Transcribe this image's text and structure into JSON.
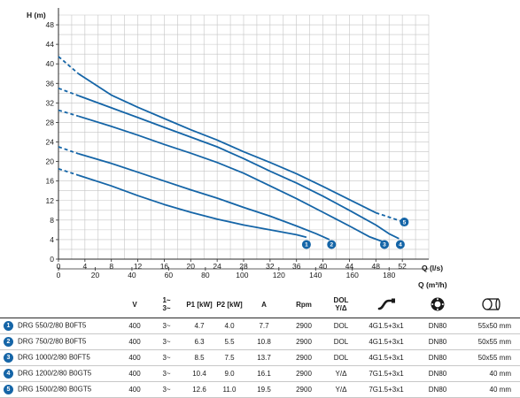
{
  "chart_data": {
    "type": "line",
    "ylabel": "H (m)",
    "xlabel": "Q (l/s)",
    "x2label": "Q (m³/h)",
    "xlim": [
      0,
      56
    ],
    "ylim": [
      0,
      50
    ],
    "x_ticks": [
      "0",
      "4",
      "8",
      "12",
      "16",
      "20",
      "24",
      "28",
      "32",
      "36",
      "40",
      "44",
      "48",
      "52"
    ],
    "x2_ticks": [
      "0",
      "20",
      "40",
      "60",
      "80",
      "100",
      "120",
      "140",
      "160",
      "180"
    ],
    "y_ticks": [
      "0",
      "4",
      "8",
      "12",
      "16",
      "20",
      "24",
      "28",
      "32",
      "36",
      "40",
      "44",
      "48"
    ],
    "grid": true,
    "series": [
      {
        "name": "1",
        "shutoff": [
          [
            0,
            18.5
          ],
          [
            3,
            17.2
          ]
        ],
        "points": [
          [
            3,
            17.2
          ],
          [
            8,
            15.0
          ],
          [
            12,
            13.0
          ],
          [
            16,
            11.2
          ],
          [
            20,
            9.6
          ],
          [
            24,
            8.2
          ],
          [
            28,
            7.0
          ],
          [
            32,
            6.0
          ],
          [
            36,
            5.0
          ],
          [
            37.5,
            4.5
          ]
        ],
        "label_at": [
          37.5,
          3.0
        ]
      },
      {
        "name": "2",
        "shutoff": [
          [
            0,
            23
          ],
          [
            3,
            21.6
          ]
        ],
        "points": [
          [
            3,
            21.6
          ],
          [
            8,
            19.6
          ],
          [
            12,
            17.8
          ],
          [
            16,
            16.0
          ],
          [
            20,
            14.2
          ],
          [
            24,
            12.5
          ],
          [
            28,
            10.6
          ],
          [
            32,
            8.8
          ],
          [
            36,
            6.8
          ],
          [
            39,
            5.2
          ],
          [
            41,
            4.0
          ]
        ],
        "label_at": [
          41.3,
          3.0
        ]
      },
      {
        "name": "3",
        "shutoff": [
          [
            0,
            30.5
          ],
          [
            3,
            29.3
          ]
        ],
        "points": [
          [
            3,
            29.3
          ],
          [
            8,
            27.2
          ],
          [
            12,
            25.4
          ],
          [
            16,
            23.5
          ],
          [
            20,
            21.7
          ],
          [
            24,
            19.8
          ],
          [
            28,
            17.6
          ],
          [
            32,
            15.0
          ],
          [
            36,
            12.4
          ],
          [
            40,
            9.6
          ],
          [
            44,
            6.8
          ],
          [
            47,
            4.6
          ],
          [
            49,
            3.6
          ]
        ],
        "label_at": [
          49.3,
          3.0
        ]
      },
      {
        "name": "4",
        "shutoff": [
          [
            0,
            35
          ],
          [
            3,
            33.5
          ]
        ],
        "points": [
          [
            3,
            33.5
          ],
          [
            8,
            31.0
          ],
          [
            12,
            29.0
          ],
          [
            16,
            27.0
          ],
          [
            20,
            25.0
          ],
          [
            24,
            23.0
          ],
          [
            28,
            20.6
          ],
          [
            32,
            18.0
          ],
          [
            36,
            15.6
          ],
          [
            40,
            12.9
          ],
          [
            44,
            10.0
          ],
          [
            48,
            7.0
          ],
          [
            50,
            5.2
          ],
          [
            51.5,
            4.2
          ]
        ],
        "label_at": [
          51.7,
          3.0
        ]
      },
      {
        "name": "5",
        "shutoff": [
          [
            0,
            41.5
          ],
          [
            3,
            38.0
          ]
        ],
        "points": [
          [
            3,
            38.0
          ],
          [
            8,
            33.6
          ],
          [
            12,
            31.1
          ],
          [
            16,
            28.8
          ],
          [
            20,
            26.5
          ],
          [
            24,
            24.4
          ],
          [
            28,
            22.0
          ],
          [
            32,
            19.8
          ],
          [
            36,
            17.5
          ],
          [
            40,
            14.9
          ],
          [
            44,
            12.2
          ],
          [
            48,
            9.5
          ]
        ],
        "dashed_end": [
          [
            48,
            9.5
          ],
          [
            50,
            8.6
          ],
          [
            52,
            7.7
          ]
        ],
        "label_at": [
          52.3,
          7.6
        ]
      }
    ]
  },
  "colors": {
    "curve": "#1565a7",
    "grid": "#c4c4c4",
    "axis": "#2a2a2a"
  },
  "table": {
    "headers": {
      "model": "",
      "v": "V",
      "phase_top": "1~",
      "phase_bot": "3~",
      "p1": "P1 [kW]",
      "p2": "P2 [kW]",
      "a": "A",
      "rpm": "Rpm",
      "dol_top": "DOL",
      "dol_bot": "Y/Δ",
      "cable_icon": "cable-icon",
      "flange_icon": "flange-icon",
      "solids_icon": "solids-passage-icon"
    },
    "rows": [
      {
        "no": "1",
        "model": "DRG 550/2/80 B0FT5",
        "v": "400",
        "phase": "3~",
        "p1": "4.7",
        "p2": "4.0",
        "a": "7.7",
        "rpm": "2900",
        "start": "DOL",
        "cable": "4G1.5+3x1",
        "outlet": "DN80",
        "passage": "55x50 mm"
      },
      {
        "no": "2",
        "model": "DRG 750/2/80 B0FT5",
        "v": "400",
        "phase": "3~",
        "p1": "6.3",
        "p2": "5.5",
        "a": "10.8",
        "rpm": "2900",
        "start": "DOL",
        "cable": "4G1.5+3x1",
        "outlet": "DN80",
        "passage": "50x55 mm"
      },
      {
        "no": "3",
        "model": "DRG 1000/2/80 B0FT5",
        "v": "400",
        "phase": "3~",
        "p1": "8.5",
        "p2": "7.5",
        "a": "13.7",
        "rpm": "2900",
        "start": "DOL",
        "cable": "4G1.5+3x1",
        "outlet": "DN80",
        "passage": "50x55 mm"
      },
      {
        "no": "4",
        "model": "DRG 1200/2/80 B0GT5",
        "v": "400",
        "phase": "3~",
        "p1": "10.4",
        "p2": "9.0",
        "a": "16.1",
        "rpm": "2900",
        "start": "Y/Δ",
        "cable": "7G1.5+3x1",
        "outlet": "DN80",
        "passage": "40 mm"
      },
      {
        "no": "5",
        "model": "DRG 1500/2/80 B0GT5",
        "v": "400",
        "phase": "3~",
        "p1": "12.6",
        "p2": "11.0",
        "a": "19.5",
        "rpm": "2900",
        "start": "Y/Δ",
        "cable": "7G1.5+3x1",
        "outlet": "DN80",
        "passage": "40 mm"
      }
    ]
  }
}
